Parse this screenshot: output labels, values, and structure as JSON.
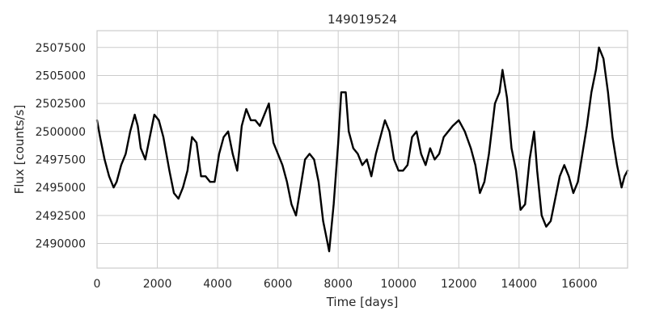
{
  "chart_data": {
    "type": "line",
    "title": "149019524",
    "xlabel": "Time [days]",
    "ylabel": "Flux [counts/s]",
    "xlim": [
      0,
      17600
    ],
    "ylim": [
      2487800,
      2509000
    ],
    "grid": true,
    "legend": "none",
    "colors": {
      "line": "#000000",
      "grid": "#cccccc",
      "frame": "#cccccc",
      "background": "#ffffff"
    },
    "xticks": [
      0,
      2000,
      4000,
      6000,
      8000,
      10000,
      12000,
      14000,
      16000
    ],
    "xtick_labels": [
      "0",
      "2000",
      "4000",
      "6000",
      "8000",
      "10000",
      "12000",
      "14000",
      "16000"
    ],
    "yticks": [
      2490000,
      2492500,
      2495000,
      2497500,
      2500000,
      2502500,
      2505000,
      2507500
    ],
    "ytick_labels": [
      "2490000",
      "2492500",
      "2495000",
      "2497500",
      "2500000",
      "2502500",
      "2505000",
      "2507500"
    ],
    "series": [
      {
        "x": [
          0,
          100,
          250,
          400,
          550,
          650,
          800,
          950,
          1100,
          1250,
          1350,
          1450,
          1600,
          1750,
          1900,
          2050,
          2200,
          2400,
          2550,
          2700,
          2850,
          3000,
          3150,
          3300,
          3450,
          3600,
          3750,
          3900,
          4050,
          4200,
          4350,
          4500,
          4650,
          4800,
          4950,
          5100,
          5250,
          5400,
          5550,
          5700,
          5850,
          6000,
          6150,
          6300,
          6450,
          6600,
          6750,
          6900,
          7050,
          7200,
          7350,
          7500,
          7650,
          7700,
          7850,
          8000,
          8100,
          8250,
          8350,
          8500,
          8650,
          8800,
          8950,
          9100,
          9250,
          9400,
          9550,
          9700,
          9850,
          10000,
          10150,
          10300,
          10450,
          10600,
          10750,
          10900,
          11050,
          11200,
          11350,
          11500,
          11650,
          11800,
          12000,
          12200,
          12400,
          12550,
          12700,
          12850,
          13000,
          13200,
          13350,
          13450,
          13600,
          13750,
          13900,
          14050,
          14200,
          14350,
          14500,
          14600,
          14750,
          14900,
          15050,
          15200,
          15350,
          15500,
          15650,
          15800,
          15950,
          16100,
          16250,
          16400,
          16550,
          16650,
          16800,
          16950,
          17100,
          17250,
          17400,
          17500,
          17600
        ],
        "y": [
          2501000,
          2499500,
          2497500,
          2496000,
          2495000,
          2495500,
          2497000,
          2498000,
          2500000,
          2501500,
          2500500,
          2498500,
          2497500,
          2499500,
          2501500,
          2501000,
          2499500,
          2496500,
          2494500,
          2494000,
          2495000,
          2496500,
          2499500,
          2499000,
          2496000,
          2496000,
          2495500,
          2495500,
          2498000,
          2499500,
          2500000,
          2498000,
          2496500,
          2500500,
          2502000,
          2501000,
          2501000,
          2500500,
          2501500,
          2502500,
          2499000,
          2498000,
          2497000,
          2495500,
          2493500,
          2492500,
          2495000,
          2497500,
          2498000,
          2497500,
          2495500,
          2492000,
          2490000,
          2489300,
          2493500,
          2499000,
          2503500,
          2503500,
          2500000,
          2498500,
          2498000,
          2497000,
          2497500,
          2496000,
          2498000,
          2499500,
          2501000,
          2500000,
          2497500,
          2496500,
          2496500,
          2497000,
          2499500,
          2500000,
          2498000,
          2497000,
          2498500,
          2497500,
          2498000,
          2499500,
          2500000,
          2500500,
          2501000,
          2500000,
          2498500,
          2497000,
          2494500,
          2495500,
          2498000,
          2502500,
          2503500,
          2505500,
          2503000,
          2498500,
          2496500,
          2493000,
          2493500,
          2497500,
          2500000,
          2496500,
          2492500,
          2491500,
          2492000,
          2494000,
          2496000,
          2497000,
          2496000,
          2494500,
          2495500,
          2498000,
          2500500,
          2503500,
          2505500,
          2507500,
          2506500,
          2503500,
          2499500,
          2497000,
          2495000,
          2496000,
          2496500
        ]
      }
    ]
  }
}
